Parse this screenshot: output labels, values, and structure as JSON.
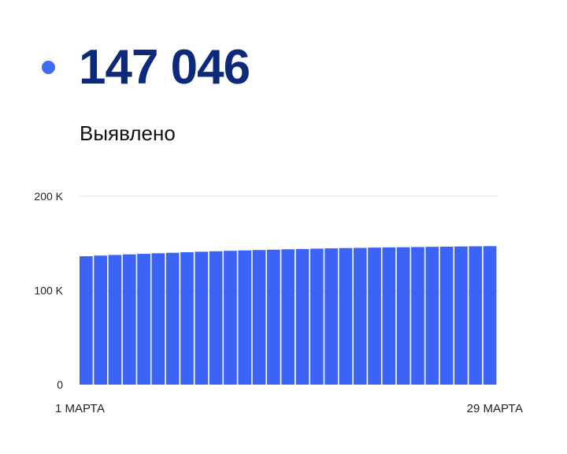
{
  "header": {
    "total_value": "147 046",
    "total_label": "Выявлено"
  },
  "colors": {
    "accent": "#3f6cf3",
    "value_text": "#0d2a7a",
    "bar": "#3b63f5",
    "grid": "#e6e6e6",
    "axis_text": "#222222"
  },
  "chart_data": {
    "type": "bar",
    "title": "Выявлено",
    "categories": [
      "1 марта",
      "2 марта",
      "3 марта",
      "4 марта",
      "5 марта",
      "6 марта",
      "7 марта",
      "8 марта",
      "9 марта",
      "10 марта",
      "11 марта",
      "12 марта",
      "13 марта",
      "14 марта",
      "15 марта",
      "16 марта",
      "17 марта",
      "18 марта",
      "19 марта",
      "20 марта",
      "21 марта",
      "22 марта",
      "23 марта",
      "24 марта",
      "25 марта",
      "26 марта",
      "27 марта",
      "28 марта",
      "29 марта"
    ],
    "values": [
      136300,
      137000,
      137700,
      138300,
      138900,
      139500,
      140000,
      140600,
      141100,
      141600,
      142100,
      142500,
      142900,
      143300,
      143700,
      144000,
      144400,
      144700,
      145000,
      145200,
      145500,
      145700,
      145900,
      146100,
      146300,
      146500,
      146700,
      146900,
      147046
    ],
    "y_ticks": [
      {
        "value": 200000,
        "label": "200 K"
      },
      {
        "value": 100000,
        "label": "100 K"
      },
      {
        "value": 0,
        "label": "0"
      }
    ],
    "x_tick_labels": [
      {
        "index": 0,
        "label": "1 МАРТА"
      },
      {
        "index": 28,
        "label": "29 МАРТА"
      }
    ],
    "ylim": [
      0,
      200000
    ],
    "grid": true,
    "xlabel": "",
    "ylabel": ""
  }
}
